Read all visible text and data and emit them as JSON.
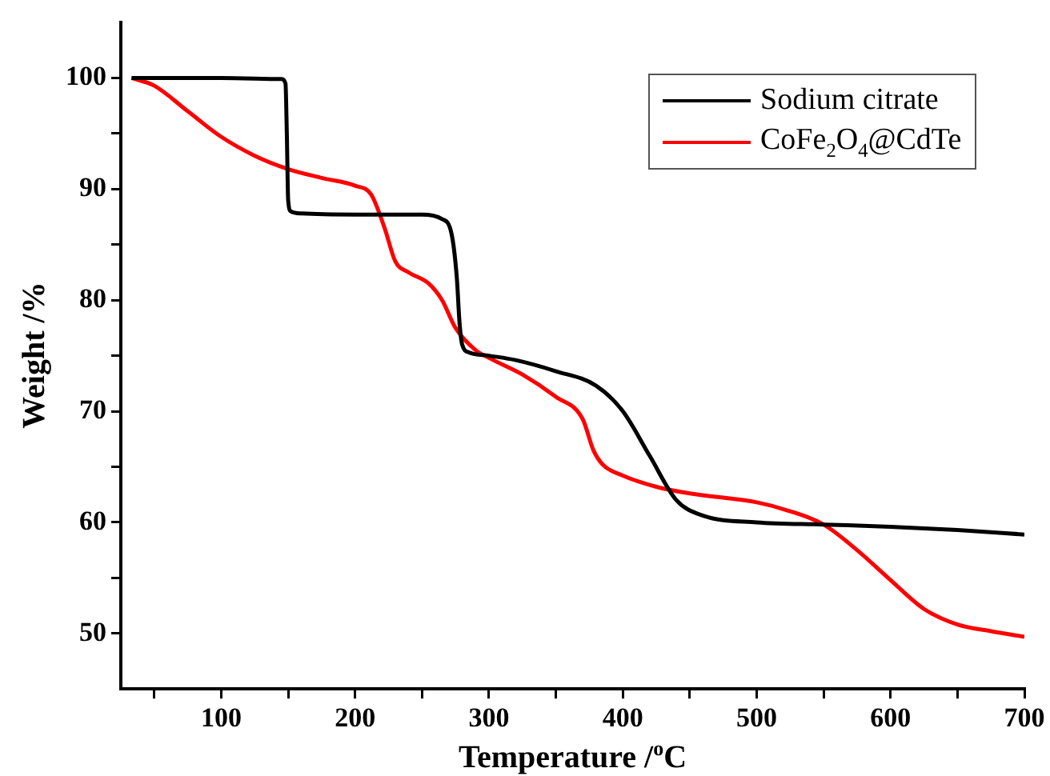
{
  "chart_data": {
    "type": "line",
    "xlabel": "Temperature /$^{o}$C",
    "ylabel": "Weight /%",
    "xlim": [
      25,
      700
    ],
    "ylim": [
      45,
      105
    ],
    "xticks": [
      {
        "value": 50,
        "label": null
      },
      100,
      {
        "value": 150,
        "label": null
      },
      200,
      {
        "value": 250,
        "label": null
      },
      300,
      {
        "value": 350,
        "label": null
      },
      400,
      {
        "value": 450,
        "label": null
      },
      500,
      {
        "value": 550,
        "label": null
      },
      600,
      {
        "value": 650,
        "label": null
      },
      700
    ],
    "yticks": [
      50,
      {
        "value": 55,
        "label": null
      },
      60,
      {
        "value": 65,
        "label": null
      },
      70,
      {
        "value": 75,
        "label": null
      },
      80,
      {
        "value": 85,
        "label": null
      },
      90,
      {
        "value": 95,
        "label": null
      },
      100
    ],
    "grid": false,
    "legend": "top right",
    "marker": "none",
    "line_style": "solid",
    "series": [
      {
        "name": "Sodium citrate",
        "color": "#000000",
        "x": [
          33,
          100,
          145,
          148,
          149,
          150,
          152,
          160,
          200,
          250,
          265,
          272,
          276,
          278,
          280,
          285,
          300,
          320,
          350,
          380,
          400,
          420,
          440,
          460,
          500,
          550,
          600,
          650,
          700
        ],
        "values": [
          100,
          100,
          99.9,
          99.5,
          95,
          89,
          88,
          87.8,
          87.7,
          87.7,
          87.3,
          86,
          82,
          78,
          76,
          75.3,
          75,
          74.6,
          73.6,
          72.3,
          70,
          66,
          62,
          60.6,
          60,
          59.8,
          59.6,
          59.3,
          58.9
        ]
      },
      {
        "name": "CoFe$_{2}$O$_{4}$@CdTe",
        "color": "#ff0000",
        "x": [
          33,
          50,
          75,
          100,
          125,
          150,
          175,
          200,
          212,
          222,
          230,
          240,
          255,
          265,
          275,
          290,
          300,
          325,
          350,
          370,
          378,
          385,
          400,
          425,
          450,
          500,
          525,
          550,
          575,
          600,
          625,
          650,
          675,
          700
        ],
        "values": [
          100,
          99.3,
          97,
          94.7,
          93,
          91.8,
          91,
          90.3,
          89.5,
          86.5,
          83.5,
          82.5,
          81.5,
          80,
          77.5,
          75.5,
          74.8,
          73.3,
          71.3,
          69.3,
          66.5,
          65.2,
          64.2,
          63.2,
          62.6,
          61.8,
          61,
          59.8,
          57.5,
          54.8,
          52.2,
          50.8,
          50.2,
          49.7
        ]
      }
    ]
  }
}
